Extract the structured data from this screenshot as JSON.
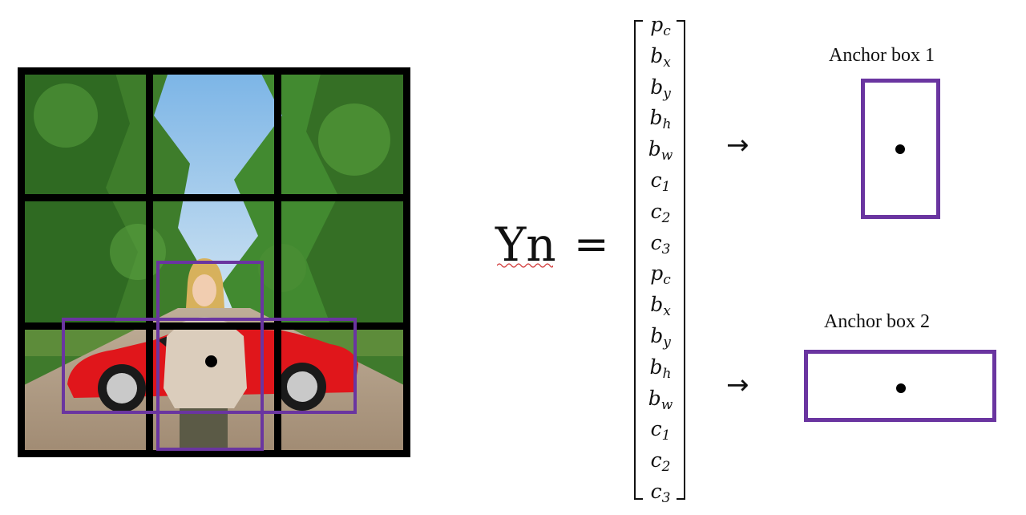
{
  "equation": {
    "lhs": "Yn",
    "op": "="
  },
  "vector": [
    {
      "base": "p",
      "sub": "c"
    },
    {
      "base": "b",
      "sub": "x"
    },
    {
      "base": "b",
      "sub": "y"
    },
    {
      "base": "b",
      "sub": "h"
    },
    {
      "base": "b",
      "sub": "w"
    },
    {
      "base": "c",
      "sub": "1"
    },
    {
      "base": "c",
      "sub": "2"
    },
    {
      "base": "c",
      "sub": "3"
    },
    {
      "base": "p",
      "sub": "c"
    },
    {
      "base": "b",
      "sub": "x"
    },
    {
      "base": "b",
      "sub": "y"
    },
    {
      "base": "b",
      "sub": "h"
    },
    {
      "base": "b",
      "sub": "w"
    },
    {
      "base": "c",
      "sub": "1"
    },
    {
      "base": "c",
      "sub": "2"
    },
    {
      "base": "c",
      "sub": "3"
    }
  ],
  "arrows": {
    "glyph": "→"
  },
  "anchors": [
    {
      "label": "Anchor box 1"
    },
    {
      "label": "Anchor box 2"
    }
  ],
  "colors": {
    "box": "#6a35a0",
    "grid": "#000000",
    "car": "#e0161b"
  },
  "grid": {
    "rows": 3,
    "cols": 3
  }
}
